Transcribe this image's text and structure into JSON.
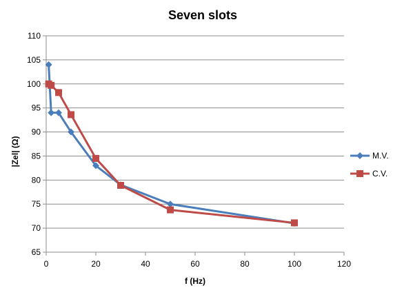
{
  "chart_data": {
    "type": "line",
    "title": "Seven slots",
    "xlabel": "f (Hz)",
    "ylabel": "|Zel| (Ω)",
    "xlim": [
      0,
      120
    ],
    "ylim": [
      65,
      110
    ],
    "x_ticks": [
      0,
      20,
      40,
      60,
      80,
      100,
      120
    ],
    "y_ticks": [
      65,
      70,
      75,
      80,
      85,
      90,
      95,
      100,
      105,
      110
    ],
    "grid": "horizontal",
    "legend_position": "right",
    "series": [
      {
        "name": "M.V.",
        "color": "#4a7ebb",
        "marker": "diamond",
        "x": [
          1,
          2,
          5,
          10,
          20,
          30,
          50,
          100
        ],
        "y": [
          104,
          94,
          94,
          90,
          83,
          79,
          75,
          71
        ]
      },
      {
        "name": "C.V.",
        "color": "#be4b48",
        "marker": "square",
        "x": [
          1,
          2,
          5,
          10,
          20,
          30,
          50,
          100
        ],
        "y": [
          100,
          99.7,
          98.2,
          93.6,
          84.5,
          78.9,
          73.8,
          71.1
        ]
      }
    ]
  }
}
